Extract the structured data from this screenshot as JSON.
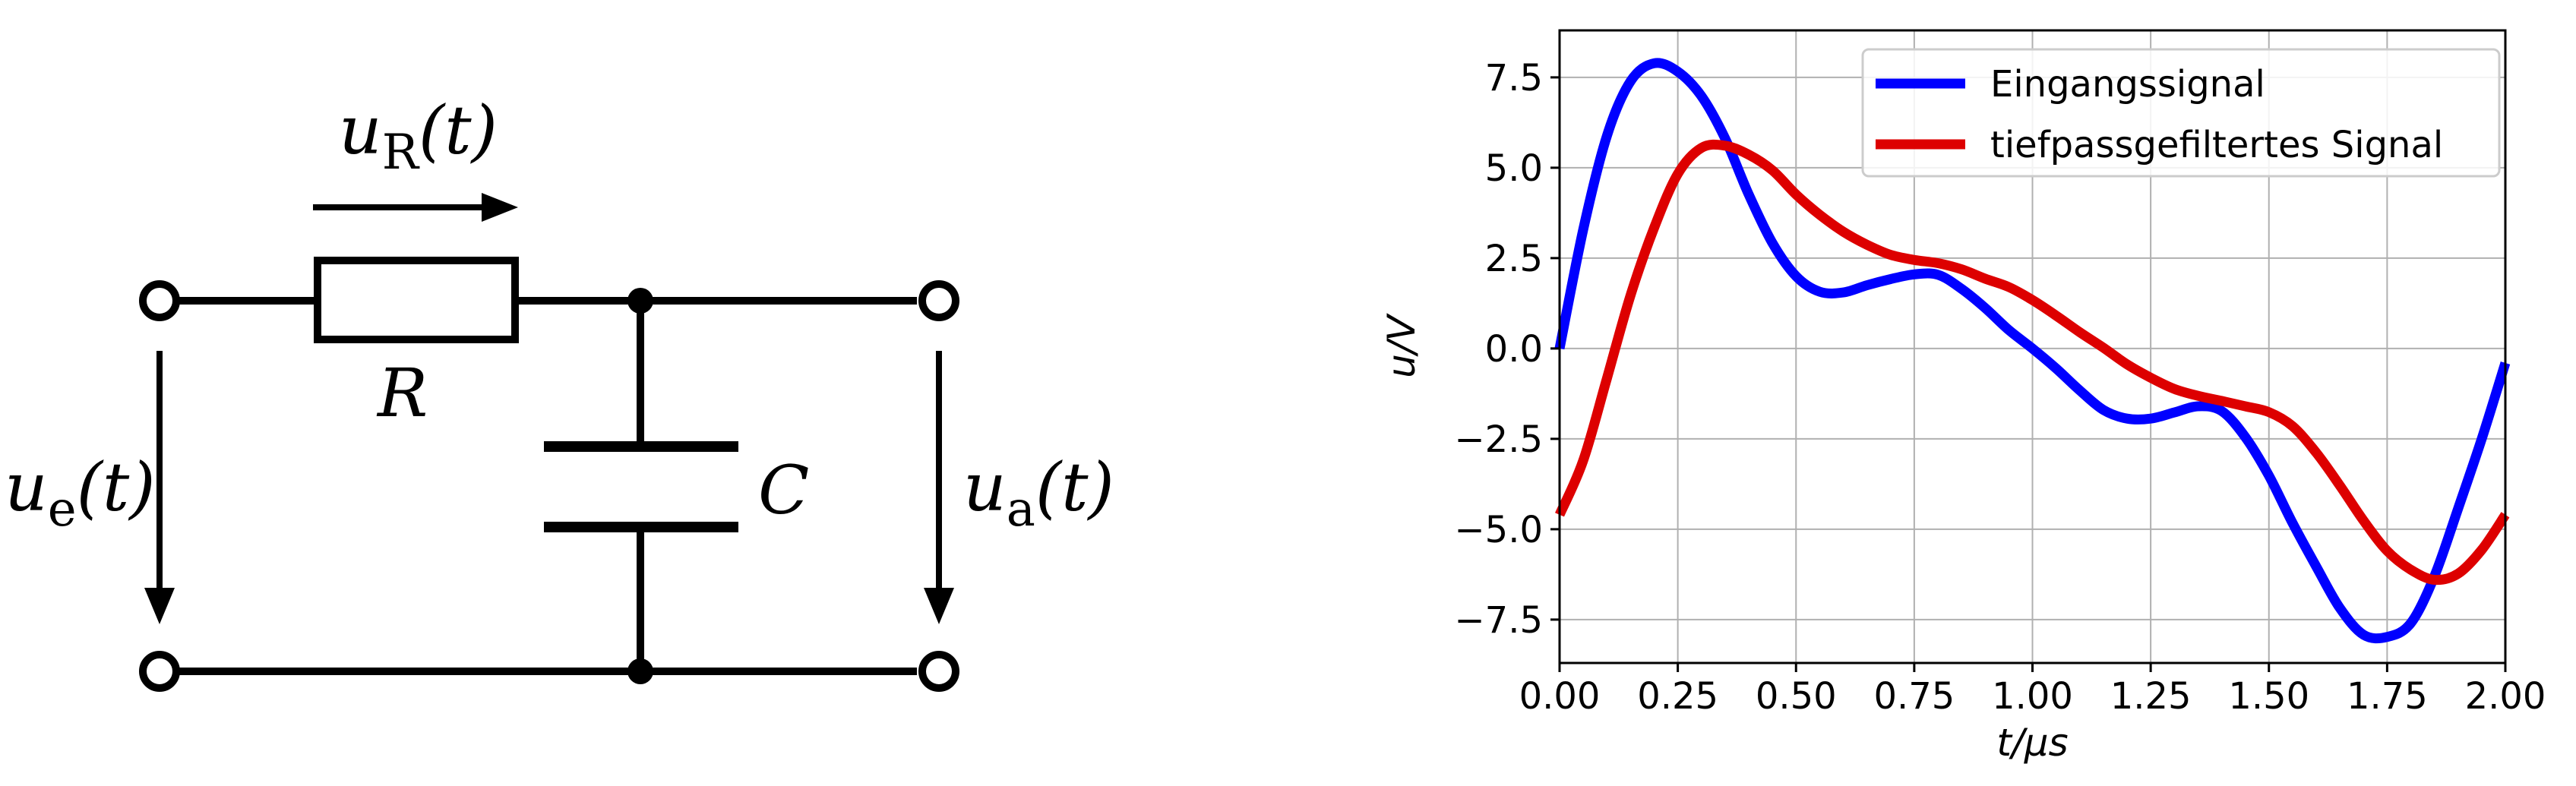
{
  "circuit": {
    "resistor_label": "R",
    "capacitor_label": "C",
    "voltage_R": {
      "sym": "u",
      "sub": "R",
      "arg": "(t)"
    },
    "voltage_in": {
      "sym": "u",
      "sub": "e",
      "arg": "(t)"
    },
    "voltage_out": {
      "sym": "u",
      "sub": "a",
      "arg": "(t)"
    }
  },
  "chart_data": {
    "type": "line",
    "xlabel": "t/μs",
    "ylabel": "u/V",
    "xlim": [
      0,
      2
    ],
    "ylim": [
      -8.7,
      8.8
    ],
    "xticks": [
      0,
      0.25,
      0.5,
      0.75,
      1.0,
      1.25,
      1.5,
      1.75,
      2.0
    ],
    "xtick_labels": [
      "0.00",
      "0.25",
      "0.50",
      "0.75",
      "1.00",
      "1.25",
      "1.50",
      "1.75",
      "2.00"
    ],
    "yticks": [
      -7.5,
      -5.0,
      -2.5,
      0.0,
      2.5,
      5.0,
      7.5
    ],
    "ytick_labels": [
      "−7.5",
      "−5.0",
      "−2.5",
      "0.0",
      "2.5",
      "5.0",
      "7.5"
    ],
    "grid": true,
    "legend_position": "top-right",
    "x": [
      0,
      0.05,
      0.1,
      0.15,
      0.2,
      0.25,
      0.3,
      0.35,
      0.4,
      0.45,
      0.5,
      0.55,
      0.6,
      0.65,
      0.7,
      0.75,
      0.8,
      0.85,
      0.9,
      0.95,
      1.0,
      1.05,
      1.1,
      1.15,
      1.2,
      1.25,
      1.3,
      1.35,
      1.4,
      1.45,
      1.5,
      1.55,
      1.6,
      1.65,
      1.7,
      1.75,
      1.8,
      1.85,
      1.9,
      1.95,
      2.0
    ],
    "series": [
      {
        "name": "Eingangssignal",
        "color": "#0000ff",
        "values": [
          0.0,
          3.29,
          5.88,
          7.39,
          7.89,
          7.66,
          6.98,
          5.81,
          4.26,
          2.92,
          2.0,
          1.57,
          1.55,
          1.75,
          1.92,
          2.05,
          2.04,
          1.65,
          1.12,
          0.51,
          0.0,
          -0.55,
          -1.16,
          -1.7,
          -1.94,
          -1.94,
          -1.77,
          -1.6,
          -1.73,
          -2.45,
          -3.52,
          -4.83,
          -6.03,
          -7.18,
          -7.92,
          -7.98,
          -7.6,
          -6.3,
          -4.43,
          -2.5,
          -0.4
        ]
      },
      {
        "name": "tiefpassgefiltertes Signal",
        "color": "#dd0000",
        "values": [
          -4.6,
          -3.1,
          -0.83,
          1.47,
          3.34,
          4.83,
          5.55,
          5.61,
          5.36,
          4.93,
          4.26,
          3.7,
          3.23,
          2.87,
          2.59,
          2.45,
          2.36,
          2.19,
          1.93,
          1.7,
          1.34,
          0.91,
          0.45,
          0.02,
          -0.44,
          -0.81,
          -1.12,
          -1.31,
          -1.45,
          -1.6,
          -1.76,
          -2.15,
          -2.88,
          -3.79,
          -4.76,
          -5.6,
          -6.12,
          -6.4,
          -6.23,
          -5.57,
          -4.6
        ]
      }
    ]
  }
}
